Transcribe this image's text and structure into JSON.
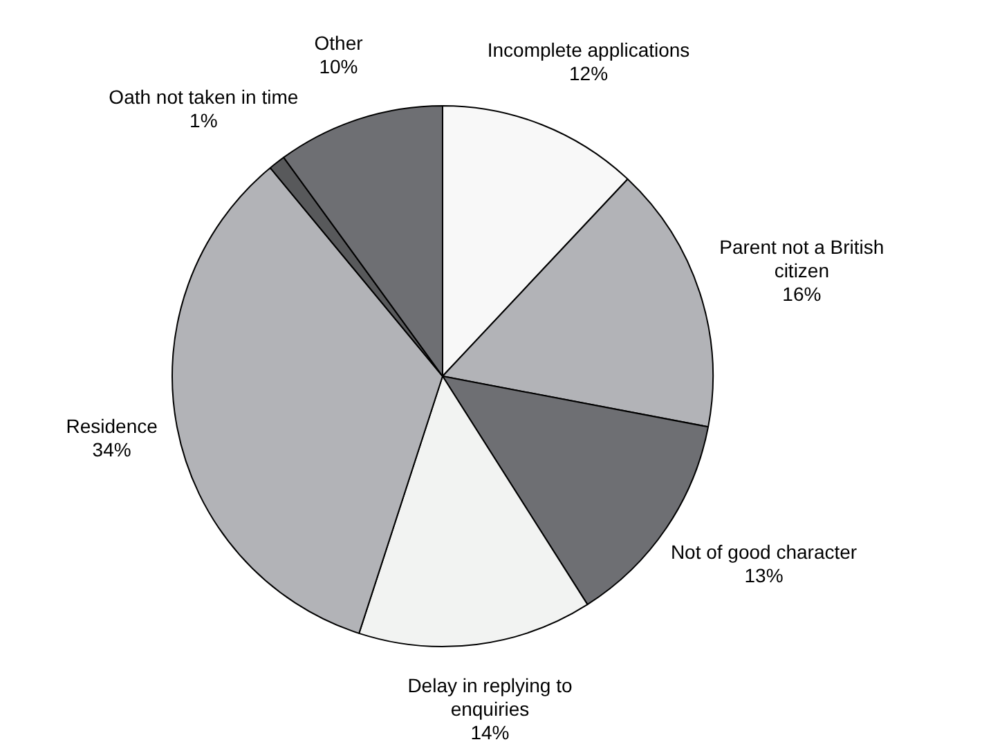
{
  "chart_data": {
    "type": "pie",
    "categories": [
      "Incomplete applications",
      "Parent not a British citizen",
      "Not of good character",
      "Delay in replying to enquiries",
      "Residence",
      "Oath not taken in time",
      "Other"
    ],
    "values": [
      12,
      16,
      13,
      14,
      34,
      1,
      10
    ],
    "value_labels": [
      "12%",
      "16%",
      "13%",
      "14%",
      "34%",
      "1%",
      "10%"
    ],
    "colors": [
      "#f8f8f8",
      "#b2b3b7",
      "#6e6f73",
      "#f2f3f2",
      "#b2b3b7",
      "#58595b",
      "#6e6f73"
    ],
    "legend": false
  }
}
